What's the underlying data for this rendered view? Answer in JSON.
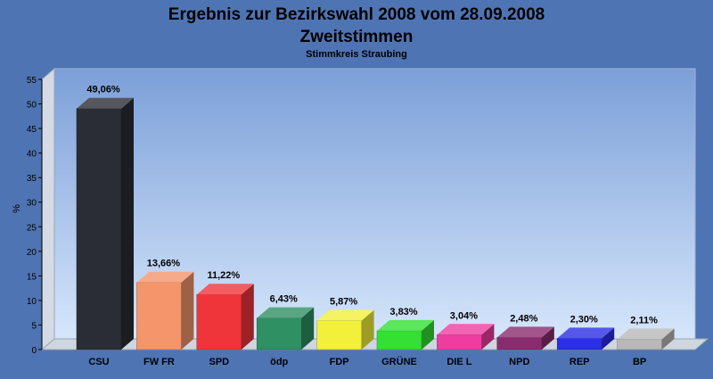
{
  "chart_data": {
    "type": "bar",
    "title": "Ergebnis zur Bezirkswahl 2008 vom 28.09.2008",
    "title2": "Zweitstimmen",
    "subtitle": "Stimmkreis Straubing",
    "ylabel": "%",
    "xlabel": "",
    "ylim": [
      0,
      55
    ],
    "yticks": [
      "0",
      "5",
      "10",
      "15",
      "20",
      "25",
      "30",
      "35",
      "40",
      "45",
      "50",
      "55"
    ],
    "categories": [
      "CSU",
      "FW FR",
      "SPD",
      "ödp",
      "FDP",
      "GRÜNE",
      "DIE L",
      "NPD",
      "REP",
      "BP"
    ],
    "values": [
      49.06,
      13.66,
      11.22,
      6.43,
      5.87,
      3.83,
      3.04,
      2.48,
      2.3,
      2.11
    ],
    "labels": [
      "49,06%",
      "13,66%",
      "11,22%",
      "6,43%",
      "5,87%",
      "3,83%",
      "3,04%",
      "2,48%",
      "2,30%",
      "2,11%"
    ],
    "colors": [
      "#2a2d35",
      "#f4956b",
      "#f0353a",
      "#2e9063",
      "#f2f03a",
      "#33e033",
      "#ee3ca0",
      "#8a2b6e",
      "#2a2ee6",
      "#b8b8b8"
    ],
    "grid": false,
    "legend": "none",
    "style": "3d"
  }
}
